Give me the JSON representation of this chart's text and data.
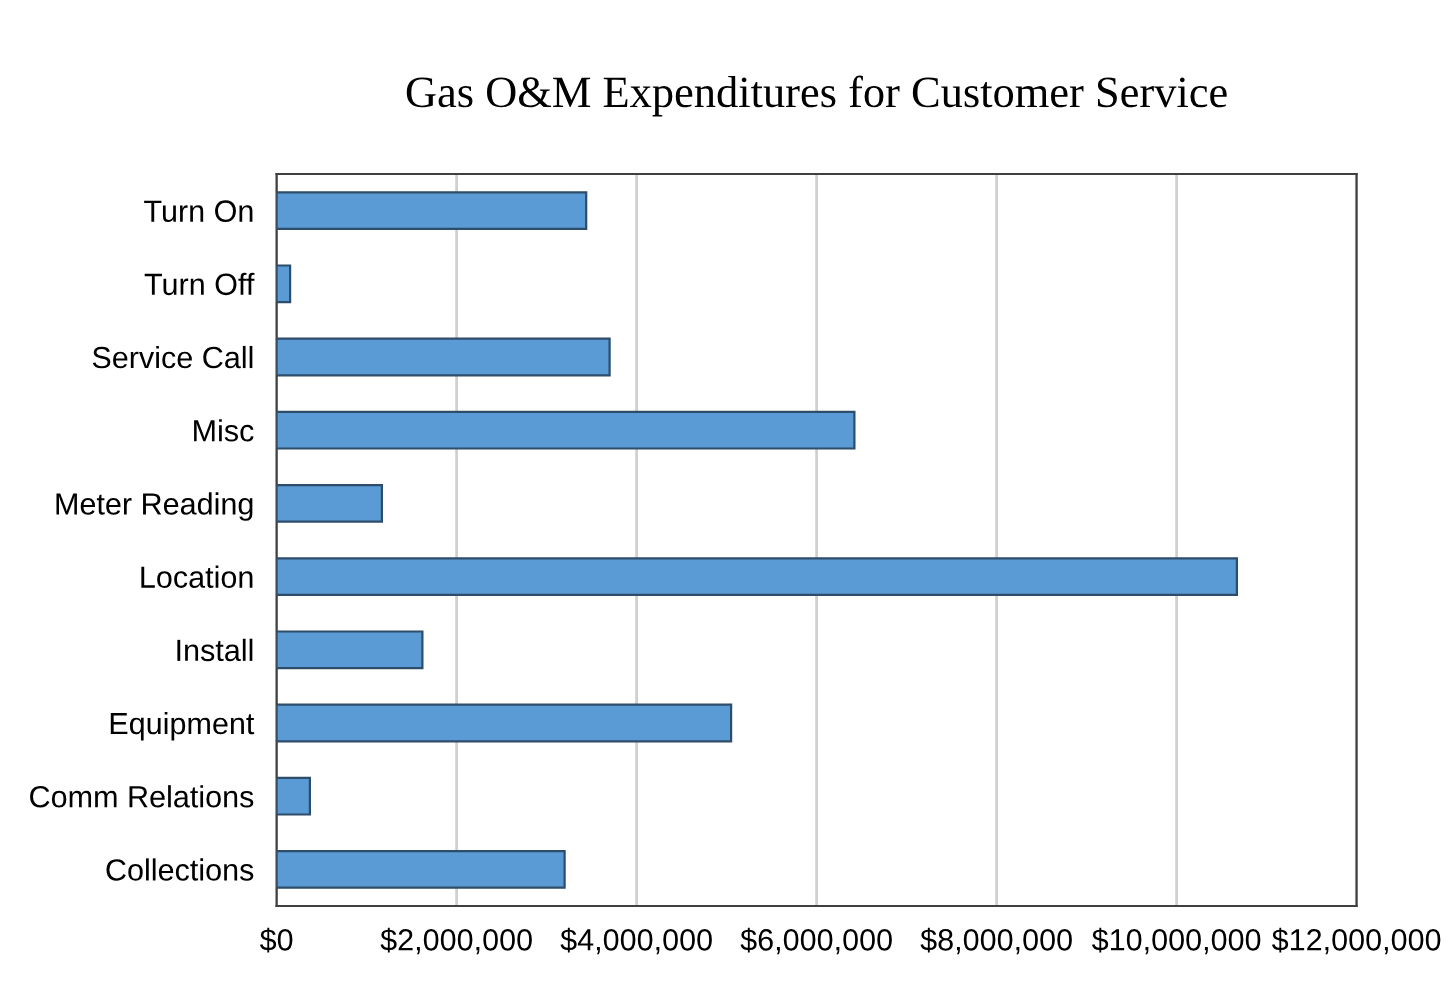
{
  "chart_data": {
    "type": "bar",
    "orientation": "horizontal",
    "title": "Gas O&M Expenditures for Customer Service",
    "categories": [
      "Turn On",
      "Turn Off",
      "Service Call",
      "Misc",
      "Meter Reading",
      "Location",
      "Install",
      "Equipment",
      "Comm Relations",
      "Collections"
    ],
    "values": [
      3440000,
      150000,
      3700000,
      6420000,
      1170000,
      10670000,
      1620000,
      5050000,
      370000,
      3200000
    ],
    "color": "#5b9bd5",
    "xlim": [
      0,
      12000000
    ],
    "xticks": [
      {
        "value": 0,
        "label": "$0"
      },
      {
        "value": 2000000,
        "label": "$2,000,000"
      },
      {
        "value": 4000000,
        "label": "$4,000,000"
      },
      {
        "value": 6000000,
        "label": "$6,000,000"
      },
      {
        "value": 8000000,
        "label": "$8,000,000"
      },
      {
        "value": 10000000,
        "label": "$10,000,000"
      },
      {
        "value": 12000000,
        "label": "$12,000,000"
      }
    ],
    "grid": "x",
    "legend": false
  }
}
